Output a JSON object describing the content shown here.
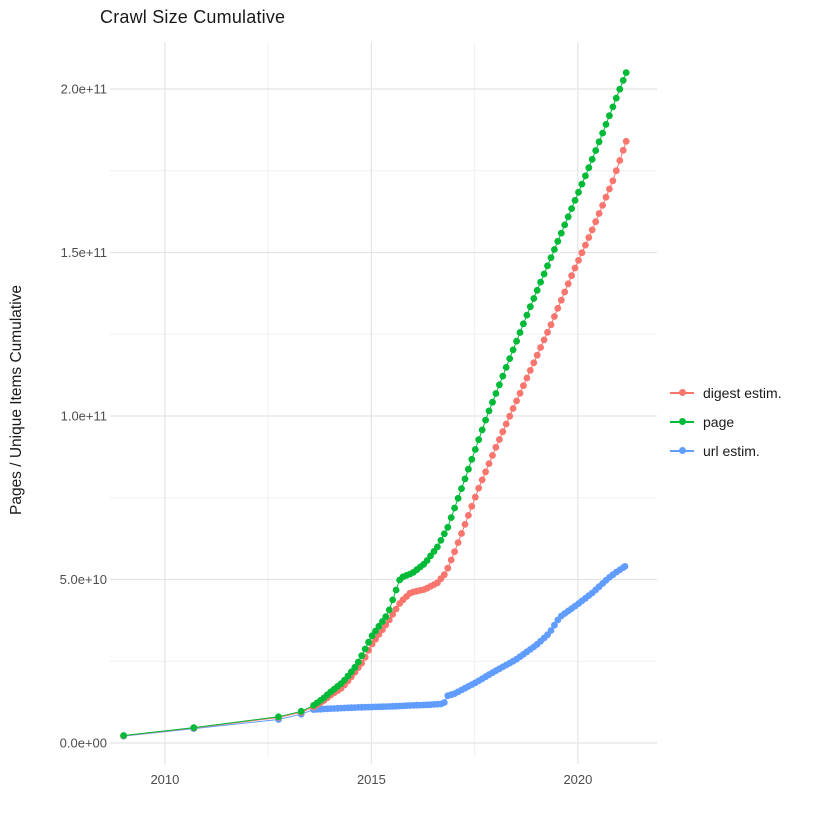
{
  "title": "Crawl Size Cumulative",
  "y_axis": {
    "label": "Pages / Unique Items Cumulative",
    "ticks": [
      {
        "label": "0.0e+00",
        "value": 0
      },
      {
        "label": "5.0e+10",
        "value": 50000000000.0
      },
      {
        "label": "1.0e+11",
        "value": 100000000000.0
      },
      {
        "label": "1.5e+11",
        "value": 150000000000.0
      },
      {
        "label": "2.0e+11",
        "value": 200000000000.0
      }
    ]
  },
  "x_axis": {
    "label": "",
    "ticks": [
      {
        "label": "2010",
        "value": 2010
      },
      {
        "label": "2015",
        "value": 2015
      },
      {
        "label": "2020",
        "value": 2020
      }
    ]
  },
  "legend": {
    "items": [
      {
        "label": "digest estim.",
        "color": "#F8766D",
        "series": "digest"
      },
      {
        "label": "page",
        "color": "#00BA38",
        "series": "page"
      },
      {
        "label": "url estim.",
        "color": "#619CFF",
        "series": "url"
      }
    ]
  },
  "chart_data": {
    "type": "line",
    "title": "Crawl Size Cumulative",
    "xlabel": "",
    "ylabel": "Pages / Unique Items Cumulative",
    "xlim": [
      2008.4,
      2021.9
    ],
    "ylim": [
      0,
      215000000000.0
    ],
    "grid": {
      "major_x": [
        2010,
        2015,
        2020
      ],
      "minor_x": [
        2012.5,
        2017.5
      ],
      "major_y": [
        0,
        50000000000.0,
        100000000000.0,
        150000000000.0,
        200000000000.0
      ],
      "minor_y": [
        25000000000.0,
        75000000000.0,
        125000000000.0,
        175000000000.0
      ]
    },
    "legend_position": "right",
    "marker": "point-with-line",
    "dense_points_from_year": 2013.6,
    "point_interval_years": 0.0833,
    "series": [
      {
        "name": "digest estim.",
        "color": "#F8766D",
        "points": [
          [
            2009.0,
            2200000000.0
          ],
          [
            2010.7,
            4600000000.0
          ],
          [
            2012.75,
            7800000000.0
          ],
          [
            2013.3,
            9400000000.0
          ],
          [
            2013.6,
            11000000000.0
          ],
          [
            2013.85,
            13000000000.0
          ],
          [
            2014.0,
            14500000000.0
          ],
          [
            2014.3,
            17000000000.0
          ],
          [
            2014.5,
            20000000000.0
          ],
          [
            2014.8,
            25000000000.0
          ],
          [
            2015.0,
            30000000000.0
          ],
          [
            2015.2,
            33500000000.0
          ],
          [
            2015.4,
            37000000000.0
          ],
          [
            2015.7,
            43000000000.0
          ],
          [
            2015.95,
            46000000000.0
          ],
          [
            2016.3,
            47000000000.0
          ],
          [
            2016.6,
            49000000000.0
          ],
          [
            2016.8,
            52000000000.0
          ],
          [
            2017.0,
            58000000000.0
          ],
          [
            2017.3,
            68000000000.0
          ],
          [
            2017.6,
            78000000000.0
          ],
          [
            2018.0,
            90000000000.0
          ],
          [
            2018.35,
            100000000000.0
          ],
          [
            2018.85,
            114000000000.0
          ],
          [
            2019.35,
            128000000000.0
          ],
          [
            2019.85,
            143000000000.0
          ],
          [
            2020.35,
            157000000000.0
          ],
          [
            2020.85,
            172000000000.0
          ],
          [
            2021.17,
            184000000000.0
          ]
        ]
      },
      {
        "name": "page",
        "color": "#00BA38",
        "points": [
          [
            2009.0,
            2300000000.0
          ],
          [
            2010.7,
            4700000000.0
          ],
          [
            2012.75,
            8000000000.0
          ],
          [
            2013.3,
            9700000000.0
          ],
          [
            2013.6,
            11500000000.0
          ],
          [
            2013.85,
            13800000000.0
          ],
          [
            2014.0,
            15500000000.0
          ],
          [
            2014.3,
            18500000000.0
          ],
          [
            2014.5,
            21500000000.0
          ],
          [
            2014.65,
            24000000000.0
          ],
          [
            2014.8,
            27500000000.0
          ],
          [
            2015.0,
            32500000000.0
          ],
          [
            2015.2,
            36000000000.0
          ],
          [
            2015.4,
            39500000000.0
          ],
          [
            2015.55,
            45000000000.0
          ],
          [
            2015.7,
            50500000000.0
          ],
          [
            2016.0,
            52000000000.0
          ],
          [
            2016.3,
            55000000000.0
          ],
          [
            2016.6,
            60000000000.0
          ],
          [
            2016.85,
            66000000000.0
          ],
          [
            2017.3,
            82000000000.0
          ],
          [
            2017.8,
            100000000000.0
          ],
          [
            2018.3,
            116000000000.0
          ],
          [
            2018.8,
            132000000000.0
          ],
          [
            2019.3,
            147000000000.0
          ],
          [
            2019.8,
            162000000000.0
          ],
          [
            2020.3,
            177000000000.0
          ],
          [
            2020.8,
            193000000000.0
          ],
          [
            2021.17,
            205000000000.0
          ]
        ]
      },
      {
        "name": "url estim.",
        "color": "#619CFF",
        "points": [
          [
            2009.0,
            2100000000.0
          ],
          [
            2010.7,
            4400000000.0
          ],
          [
            2012.75,
            7200000000.0
          ],
          [
            2013.3,
            8800000000.0
          ],
          [
            2013.6,
            10200000000.0
          ],
          [
            2014.0,
            10500000000.0
          ],
          [
            2014.5,
            10800000000.0
          ],
          [
            2015.0,
            11000000000.0
          ],
          [
            2015.5,
            11200000000.0
          ],
          [
            2016.0,
            11500000000.0
          ],
          [
            2016.4,
            11700000000.0
          ],
          [
            2016.75,
            12000000000.0
          ],
          [
            2016.85,
            14500000000.0
          ],
          [
            2017.0,
            15000000000.0
          ],
          [
            2017.5,
            18300000000.0
          ],
          [
            2018.0,
            22000000000.0
          ],
          [
            2018.5,
            25500000000.0
          ],
          [
            2019.0,
            30000000000.0
          ],
          [
            2019.3,
            33500000000.0
          ],
          [
            2019.56,
            38500000000.0
          ],
          [
            2020.0,
            42500000000.0
          ],
          [
            2020.36,
            46000000000.0
          ],
          [
            2020.7,
            50000000000.0
          ],
          [
            2020.9,
            52000000000.0
          ],
          [
            2021.14,
            54000000000.0
          ]
        ]
      }
    ]
  },
  "colors": {
    "grid_major": "#e4e4e4",
    "grid_minor": "#f0f0f0",
    "tick_text": "#4d4d4d",
    "title_text": "#1a1a1a"
  }
}
